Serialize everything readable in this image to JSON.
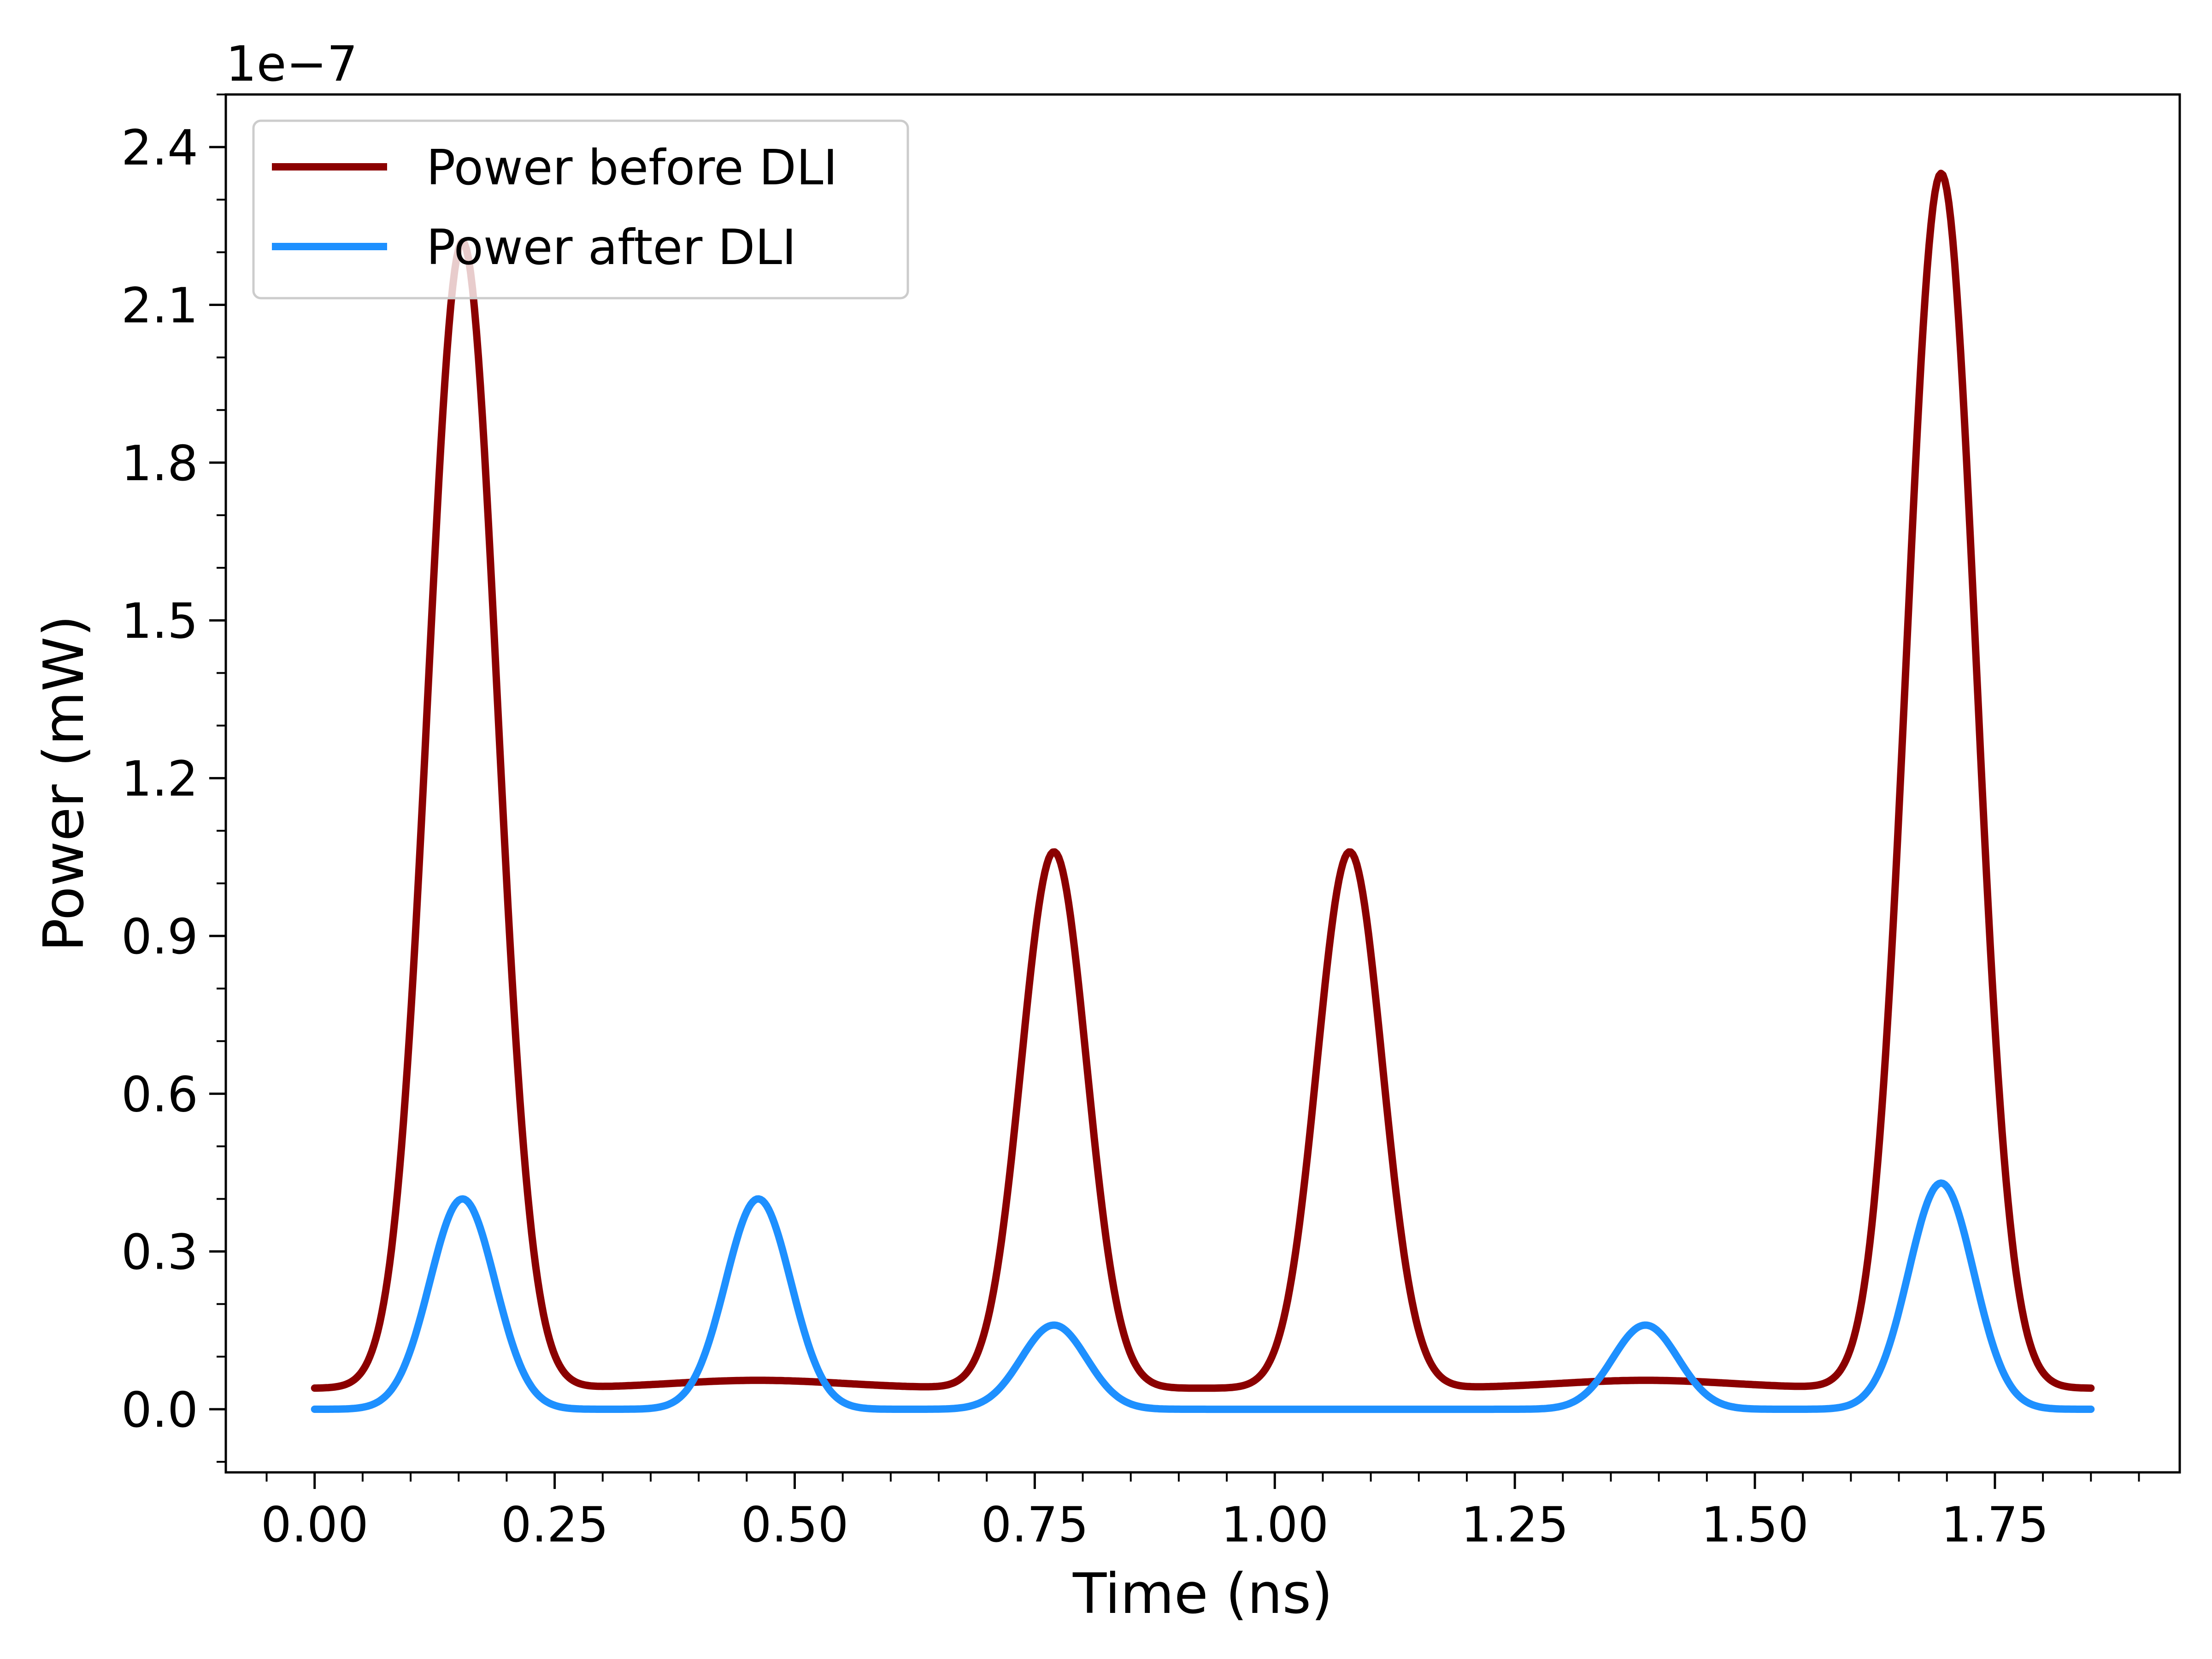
{
  "chart_data": {
    "type": "line",
    "xlabel": "Time (ns)",
    "ylabel": "Power (mW)",
    "y_offset_text": "1e−7",
    "xlim": [
      -0.0925,
      1.9425
    ],
    "ylim": [
      -0.12,
      2.5
    ],
    "x_ticks": [
      0.0,
      0.25,
      0.5,
      0.75,
      1.0,
      1.25,
      1.5,
      1.75
    ],
    "x_tick_labels": [
      "0.00",
      "0.25",
      "0.50",
      "0.75",
      "1.00",
      "1.25",
      "1.50",
      "1.75"
    ],
    "y_ticks": [
      0.0,
      0.3,
      0.6,
      0.9,
      1.2,
      1.5,
      1.8,
      2.1,
      2.4
    ],
    "y_tick_labels": [
      "0.0",
      "0.3",
      "0.6",
      "0.9",
      "1.2",
      "1.5",
      "1.8",
      "2.1",
      "2.4"
    ],
    "legend_position": "top-left",
    "grid": false,
    "x_range": [
      0.0,
      1.85
    ],
    "series": [
      {
        "name": "Power before DLI",
        "color": "#8b0000",
        "baseline": 0.04,
        "peaks": [
          {
            "t": 0.154,
            "amplitude": 2.18,
            "sigma": 0.036
          },
          {
            "t": 0.462,
            "amplitude": 0.015,
            "sigma": 0.09
          },
          {
            "t": 0.77,
            "amplitude": 1.02,
            "sigma": 0.034
          },
          {
            "t": 1.078,
            "amplitude": 1.02,
            "sigma": 0.034
          },
          {
            "t": 1.386,
            "amplitude": 0.015,
            "sigma": 0.09
          },
          {
            "t": 1.694,
            "amplitude": 2.31,
            "sigma": 0.036
          }
        ]
      },
      {
        "name": "Power after DLI",
        "color": "#1e90ff",
        "baseline": 0.0,
        "peaks": [
          {
            "t": 0.154,
            "amplitude": 0.4,
            "sigma": 0.034
          },
          {
            "t": 0.462,
            "amplitude": 0.4,
            "sigma": 0.034
          },
          {
            "t": 0.77,
            "amplitude": 0.16,
            "sigma": 0.034
          },
          {
            "t": 1.386,
            "amplitude": 0.16,
            "sigma": 0.034
          },
          {
            "t": 1.694,
            "amplitude": 0.43,
            "sigma": 0.034
          }
        ]
      }
    ]
  }
}
